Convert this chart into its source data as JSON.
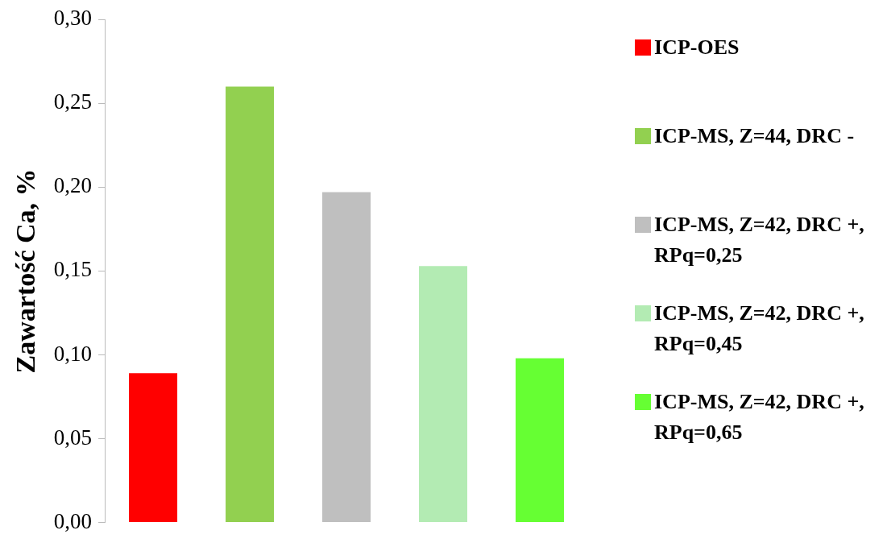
{
  "chart_data": {
    "type": "bar",
    "ylabel": "Zawartość Ca, %",
    "categories": [
      null,
      null,
      null,
      null,
      null
    ],
    "stacked": true,
    "series": [
      {
        "name": "ICP-OES",
        "color": "#ff0000",
        "values": [
          0.089,
          null,
          null,
          null,
          null
        ]
      },
      {
        "name": "ICP-MS, Z=44, DRC -",
        "color": "#92d050",
        "values": [
          null,
          0.26,
          null,
          null,
          null
        ]
      },
      {
        "name": "ICP-MS, Z=42, DRC +, RPq=0,25",
        "color": "#bfbfbf",
        "values": [
          null,
          null,
          0.197,
          null,
          null
        ]
      },
      {
        "name": "ICP-MS, Z=42, DRC +, RPq=0,45",
        "color": "#b3ebb3",
        "values": [
          null,
          null,
          null,
          0.153,
          null
        ]
      },
      {
        "name": "ICP-MS, Z=42, DRC +, RPq=0,65",
        "color": "#66ff33",
        "values": [
          null,
          null,
          null,
          null,
          0.098
        ]
      }
    ],
    "ylim": [
      0,
      0.3
    ],
    "yticks": [
      {
        "value": 0,
        "label": "0,00"
      },
      {
        "value": 0.05,
        "label": "0,05"
      },
      {
        "value": 0.1,
        "label": "0,10"
      },
      {
        "value": 0.15,
        "label": "0,15"
      },
      {
        "value": 0.2,
        "label": "0,20"
      },
      {
        "value": 0.25,
        "label": "0,25"
      },
      {
        "value": 0.3,
        "label": "0,30"
      }
    ],
    "grid": false,
    "legend": "right"
  }
}
